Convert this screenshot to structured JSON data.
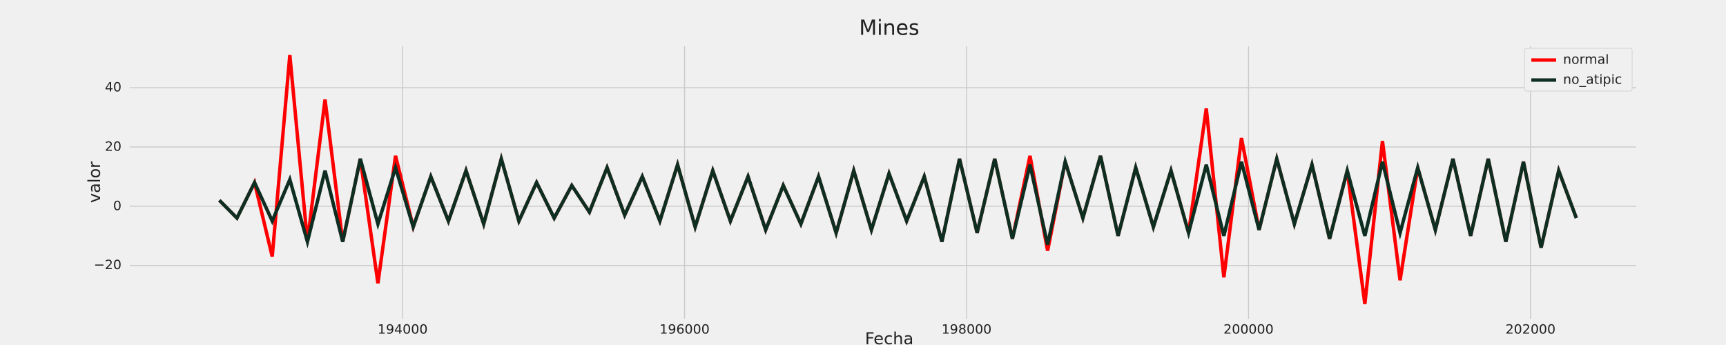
{
  "chart_data": {
    "type": "line",
    "title": "Mines",
    "x_label": "Fecha",
    "y_label": "valor",
    "x": [
      192700,
      192825,
      192950,
      193075,
      193200,
      193325,
      193450,
      193575,
      193700,
      193825,
      193950,
      194075,
      194200,
      194325,
      194450,
      194575,
      194700,
      194825,
      194950,
      195075,
      195200,
      195325,
      195450,
      195575,
      195700,
      195825,
      195950,
      196075,
      196200,
      196325,
      196450,
      196575,
      196700,
      196825,
      196950,
      197075,
      197200,
      197325,
      197450,
      197575,
      197700,
      197825,
      197950,
      198075,
      198200,
      198325,
      198450,
      198575,
      198700,
      198825,
      198950,
      199075,
      199200,
      199325,
      199450,
      199575,
      199700,
      199825,
      199950,
      200075,
      200200,
      200325,
      200450,
      200575,
      200700,
      200825,
      200950,
      201075,
      201200,
      201325,
      201450,
      201575,
      201700,
      201825,
      201950,
      202075,
      202200,
      202325
    ],
    "series": [
      {
        "name": "normal",
        "color": "#ff0000",
        "values": [
          2,
          -4,
          8,
          -17,
          51,
          -12,
          36,
          -12,
          16,
          -26,
          17,
          -7,
          10,
          -5,
          12,
          -6,
          16,
          -5,
          8,
          -4,
          7,
          -2,
          13,
          -3,
          10,
          -5,
          14,
          -7,
          12,
          -5,
          10,
          -8,
          7,
          -6,
          10,
          -9,
          12,
          -8,
          11,
          -5,
          10,
          -12,
          16,
          -9,
          16,
          -11,
          17,
          -15,
          15,
          -4,
          17,
          -10,
          13,
          -7,
          12,
          -9,
          33,
          -24,
          23,
          -8,
          16,
          -6,
          14,
          -11,
          12,
          -33,
          22,
          -25,
          13,
          -8,
          16,
          -10,
          16,
          -12,
          15,
          -14,
          12,
          -4
        ]
      },
      {
        "name": "no_atipic",
        "color": "#0f2e22",
        "values": [
          2,
          -4,
          8,
          -5,
          9,
          -12,
          12,
          -12,
          16,
          -6,
          13,
          -7,
          10,
          -5,
          12,
          -6,
          16,
          -5,
          8,
          -4,
          7,
          -2,
          13,
          -3,
          10,
          -5,
          14,
          -7,
          12,
          -5,
          10,
          -8,
          7,
          -6,
          10,
          -9,
          12,
          -8,
          11,
          -5,
          10,
          -12,
          16,
          -9,
          16,
          -11,
          14,
          -13,
          15,
          -4,
          17,
          -10,
          13,
          -7,
          12,
          -9,
          14,
          -10,
          15,
          -8,
          16,
          -6,
          14,
          -11,
          12,
          -10,
          15,
          -9,
          13,
          -8,
          16,
          -10,
          16,
          -12,
          15,
          -14,
          12,
          -4
        ]
      }
    ],
    "xlim": [
      192065,
      202750
    ],
    "ylim": [
      -38,
      54
    ],
    "xticks": [
      194000,
      196000,
      198000,
      200000,
      202000
    ],
    "yticks": [
      {
        "value": -20,
        "label": "−20"
      },
      0,
      20,
      40
    ],
    "grid": true,
    "legend": "upper right"
  }
}
